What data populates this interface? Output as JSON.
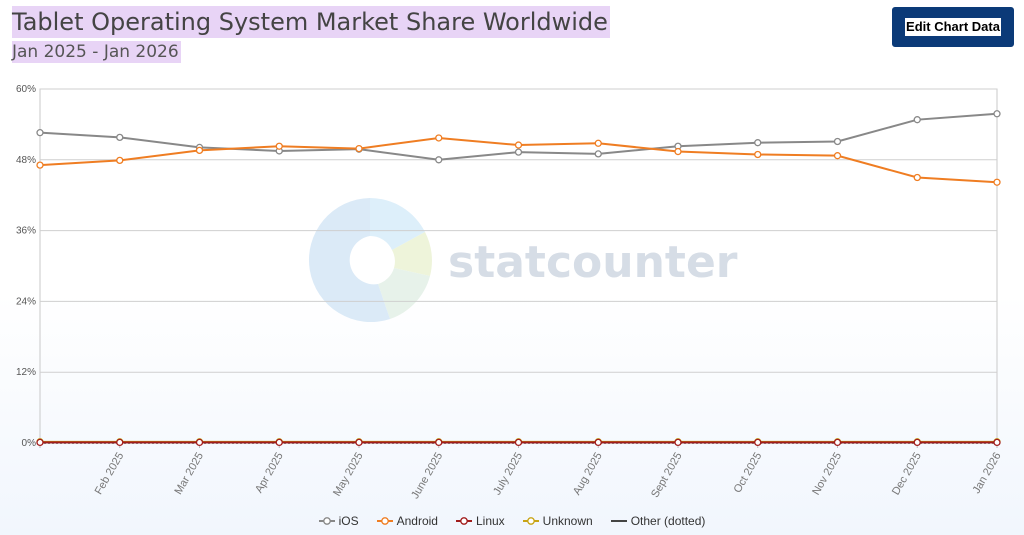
{
  "header": {
    "title": "Tablet Operating System Market Share Worldwide",
    "subtitle": "Jan 2025 - Jan 2026",
    "edit_button_label": "Edit Chart Data"
  },
  "watermark": {
    "text": "statcounter"
  },
  "chart_data": {
    "type": "line",
    "title": "Tablet Operating System Market Share Worldwide",
    "subtitle": "Jan 2025 - Jan 2026",
    "categories": [
      "",
      "Feb 2025",
      "Mar 2025",
      "Apr 2025",
      "May 2025",
      "June 2025",
      "July 2025",
      "Aug 2025",
      "Sept 2025",
      "Oct 2025",
      "Nov 2025",
      "Dec 2025",
      "Jan 2026"
    ],
    "y_ticks": [
      "0%",
      "12%",
      "24%",
      "36%",
      "48%",
      "60%"
    ],
    "ylim": [
      0,
      60
    ],
    "grid": true,
    "legend_position": "bottom",
    "series": [
      {
        "name": "iOS",
        "color": "#888888",
        "values": [
          52.6,
          51.8,
          50.1,
          49.5,
          49.8,
          48.0,
          49.3,
          49.0,
          50.3,
          50.9,
          51.1,
          54.8,
          55.8
        ]
      },
      {
        "name": "Android",
        "color": "#ef7d22",
        "values": [
          47.1,
          47.9,
          49.6,
          50.3,
          49.9,
          51.7,
          50.5,
          50.8,
          49.4,
          48.9,
          48.7,
          45.0,
          44.2
        ]
      },
      {
        "name": "Linux",
        "color": "#a11c1c",
        "values": [
          0.1,
          0.1,
          0.1,
          0.1,
          0.1,
          0.1,
          0.1,
          0.1,
          0.1,
          0.1,
          0.1,
          0.1,
          0.1
        ]
      },
      {
        "name": "Unknown",
        "color": "#c8a415",
        "values": [
          0.2,
          0.2,
          0.2,
          0.2,
          0.2,
          0.2,
          0.2,
          0.2,
          0.2,
          0.2,
          0.2,
          0.2,
          0.2
        ]
      },
      {
        "name": "Other (dotted)",
        "color": "#444444",
        "values": [
          0.05,
          0.05,
          0.05,
          0.05,
          0.05,
          0.05,
          0.05,
          0.05,
          0.05,
          0.05,
          0.05,
          0.05,
          0.05
        ]
      }
    ]
  }
}
